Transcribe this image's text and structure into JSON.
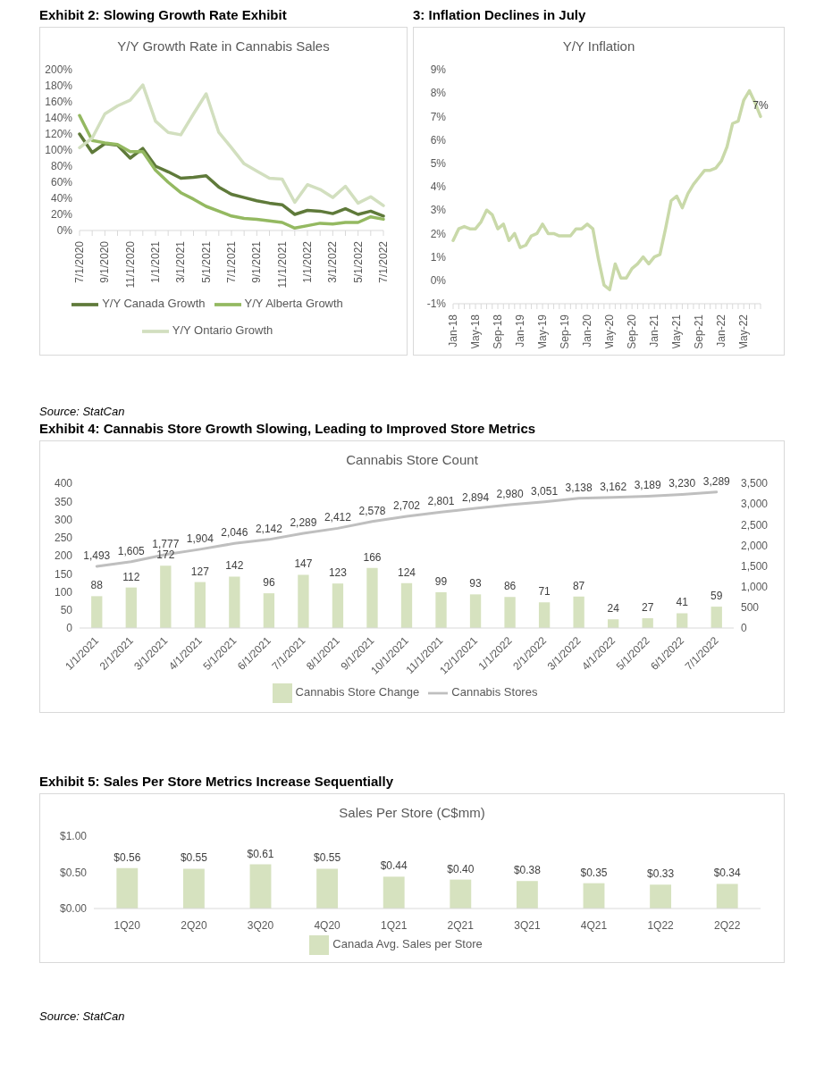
{
  "chart_data": [
    {
      "type": "line",
      "title": "Exhibit 2: Slowing Growth Rate Exhibit",
      "subtitle": "Y/Y Growth Rate in Cannabis Sales",
      "categories": [
        "7/1/2020",
        null,
        "9/1/2020",
        null,
        "11/1/2020",
        null,
        "1/1/2021",
        null,
        "3/1/2021",
        null,
        "5/1/2021",
        null,
        "7/1/2021",
        null,
        "9/1/2021",
        null,
        "11/1/2021",
        null,
        "1/1/2022",
        null,
        "3/1/2022",
        null,
        "5/1/2022",
        null,
        "7/1/2022"
      ],
      "series": [
        {
          "name": "Y/Y Canada Growth",
          "color": "#5f7a3a",
          "values": [
            120,
            97,
            108,
            106,
            90,
            102,
            80,
            73,
            65,
            66,
            68,
            54,
            45,
            41,
            37,
            34,
            32,
            20,
            25,
            24,
            21,
            27,
            20,
            24,
            18
          ]
        },
        {
          "name": "Y/Y Alberta Growth",
          "color": "#94b961",
          "values": [
            143,
            112,
            109,
            107,
            98,
            98,
            75,
            60,
            47,
            39,
            30,
            24,
            18,
            15,
            14,
            12,
            10,
            3,
            6,
            9,
            8,
            10,
            10,
            17,
            14
          ]
        },
        {
          "name": "Y/Y Ontario Growth",
          "color": "#d2dfbf",
          "values": [
            103,
            115,
            145,
            155,
            162,
            181,
            136,
            122,
            119,
            145,
            170,
            122,
            103,
            83,
            74,
            65,
            64,
            35,
            57,
            51,
            41,
            55,
            34,
            42,
            31
          ]
        }
      ],
      "ylim": [
        0,
        200
      ],
      "yticks": [
        {
          "value": 0,
          "label": "0%"
        },
        {
          "value": 20,
          "label": "20%"
        },
        {
          "value": 40,
          "label": "40%"
        },
        {
          "value": 60,
          "label": "60%"
        },
        {
          "value": 80,
          "label": "80%"
        },
        {
          "value": 100,
          "label": "100%"
        },
        {
          "value": 120,
          "label": "120%"
        },
        {
          "value": 140,
          "label": "140%"
        },
        {
          "value": 160,
          "label": "160%"
        },
        {
          "value": 180,
          "label": "180%"
        },
        {
          "value": 200,
          "label": "200%"
        }
      ],
      "legend": "bottom",
      "annotations": [
        "Source: StatCan"
      ]
    },
    {
      "type": "line",
      "title": "3: Inflation Declines in July",
      "subtitle": "Y/Y Inflation",
      "categories": [
        "Jan-18",
        null,
        null,
        null,
        "May-18",
        null,
        null,
        null,
        "Sep-18",
        null,
        null,
        null,
        "Jan-19",
        null,
        null,
        null,
        "May-19",
        null,
        null,
        null,
        "Sep-19",
        null,
        null,
        null,
        "Jan-20",
        null,
        null,
        null,
        "May-20",
        null,
        null,
        null,
        "Sep-20",
        null,
        null,
        null,
        "Jan-21",
        null,
        null,
        null,
        "May-21",
        null,
        null,
        null,
        "Sep-21",
        null,
        null,
        null,
        "Jan-22",
        null,
        null,
        null,
        "May-22",
        null,
        null,
        null
      ],
      "series": [
        {
          "color": "#c9d9a9",
          "values": [
            1.7,
            2.2,
            2.3,
            2.2,
            2.2,
            2.5,
            3.0,
            2.8,
            2.2,
            2.4,
            1.7,
            2.0,
            1.4,
            1.5,
            1.9,
            2.0,
            2.4,
            2.0,
            2.0,
            1.9,
            1.9,
            1.9,
            2.2,
            2.2,
            2.4,
            2.2,
            0.9,
            -0.2,
            -0.4,
            0.7,
            0.1,
            0.1,
            0.5,
            0.7,
            1.0,
            0.7,
            1.0,
            1.1,
            2.2,
            3.4,
            3.6,
            3.1,
            3.7,
            4.1,
            4.4,
            4.7,
            4.7,
            4.8,
            5.1,
            5.7,
            6.7,
            6.8,
            7.7,
            8.1,
            7.6,
            7.0
          ],
          "value_labels": [
            null,
            null,
            null,
            null,
            null,
            null,
            null,
            null,
            null,
            null,
            null,
            null,
            null,
            null,
            null,
            null,
            null,
            null,
            null,
            null,
            null,
            null,
            null,
            null,
            null,
            null,
            null,
            null,
            null,
            null,
            null,
            null,
            null,
            null,
            null,
            null,
            null,
            null,
            null,
            null,
            null,
            null,
            null,
            null,
            null,
            null,
            null,
            null,
            null,
            null,
            null,
            null,
            null,
            null,
            null,
            "7%"
          ]
        }
      ],
      "ylim": [
        -1,
        9
      ],
      "yticks": [
        {
          "value": -1,
          "label": "-1%"
        },
        {
          "value": 0,
          "label": "0%"
        },
        {
          "value": 1,
          "label": "1%"
        },
        {
          "value": 2,
          "label": "2%"
        },
        {
          "value": 3,
          "label": "3%"
        },
        {
          "value": 4,
          "label": "4%"
        },
        {
          "value": 5,
          "label": "5%"
        },
        {
          "value": 6,
          "label": "6%"
        },
        {
          "value": 7,
          "label": "7%"
        },
        {
          "value": 8,
          "label": "8%"
        },
        {
          "value": 9,
          "label": "9%"
        }
      ]
    },
    {
      "type": "bar",
      "title": "Exhibit 4: Cannabis Store Growth Slowing, Leading to Improved Store Metrics",
      "subtitle": "Cannabis Store Count",
      "categories": [
        "1/1/2021",
        "2/1/2021",
        "3/1/2021",
        "4/1/2021",
        "5/1/2021",
        "6/1/2021",
        "7/1/2021",
        "8/1/2021",
        "9/1/2021",
        "10/1/2021",
        "11/1/2021",
        "12/1/2021",
        "1/1/2022",
        "2/1/2022",
        "3/1/2022",
        "4/1/2022",
        "5/1/2022",
        "6/1/2022",
        "7/1/2022"
      ],
      "series": [
        {
          "name": "Cannabis Store Change",
          "color": "#d6e2bf",
          "values": [
            88,
            112,
            172,
            127,
            142,
            96,
            147,
            123,
            166,
            124,
            99,
            93,
            86,
            71,
            87,
            24,
            27,
            41,
            59
          ],
          "value_labels": [
            "88",
            "112",
            "172",
            "127",
            "142",
            "96",
            "147",
            "123",
            "166",
            "124",
            "99",
            "93",
            "86",
            "71",
            "87",
            "24",
            "27",
            "41",
            "59"
          ]
        },
        {
          "name": "Cannabis Stores",
          "type": "line",
          "axis": "y2",
          "color": "#bfbfbf",
          "values": [
            1493,
            1605,
            1777,
            1904,
            2046,
            2142,
            2289,
            2412,
            2578,
            2702,
            2801,
            2894,
            2980,
            3051,
            3138,
            3162,
            3189,
            3230,
            3289
          ],
          "value_labels": [
            "1,493",
            "1,605",
            "1,777",
            "1,904",
            "2,046",
            "2,142",
            "2,289",
            "2,412",
            "2,578",
            "2,702",
            "2,801",
            "2,894",
            "2,980",
            "3,051",
            "3,138",
            "3,162",
            "3,189",
            "3,230",
            "3,289"
          ]
        }
      ],
      "ylim": [
        0,
        400
      ],
      "yticks": [
        0,
        50,
        100,
        150,
        200,
        250,
        300,
        350,
        400
      ],
      "y2lim": [
        0,
        3500
      ],
      "y2ticks": [
        0,
        500,
        {
          "value": 1000,
          "label": "1,000"
        },
        {
          "value": 1500,
          "label": "1,500"
        },
        {
          "value": 2000,
          "label": "2,000"
        },
        {
          "value": 2500,
          "label": "2,500"
        },
        {
          "value": 3000,
          "label": "3,000"
        },
        {
          "value": 3500,
          "label": "3,500"
        }
      ],
      "legend": "bottom"
    },
    {
      "type": "bar",
      "title": "Exhibit 5: Sales Per Store Metrics Increase Sequentially",
      "subtitle": "Sales Per Store (C$mm)",
      "categories": [
        "1Q20",
        "2Q20",
        "3Q20",
        "4Q20",
        "1Q21",
        "2Q21",
        "3Q21",
        "4Q21",
        "1Q22",
        "2Q22"
      ],
      "series": [
        {
          "name": "Canada Avg. Sales per Store",
          "color": "#d6e2bf",
          "values": [
            0.56,
            0.55,
            0.61,
            0.55,
            0.44,
            0.4,
            0.38,
            0.35,
            0.33,
            0.34
          ],
          "value_labels": [
            "$0.56",
            "$0.55",
            "$0.61",
            "$0.55",
            "$0.44",
            "$0.40",
            "$0.38",
            "$0.35",
            "$0.33",
            "$0.34"
          ]
        }
      ],
      "ylim": [
        0,
        1
      ],
      "yticks": [
        {
          "value": 0,
          "label": "$0.00"
        },
        {
          "value": 0.5,
          "label": "$0.50"
        },
        {
          "value": 1,
          "label": "$1.00"
        }
      ],
      "legend": "bottom",
      "annotations": [
        "Source: StatCan"
      ]
    }
  ]
}
